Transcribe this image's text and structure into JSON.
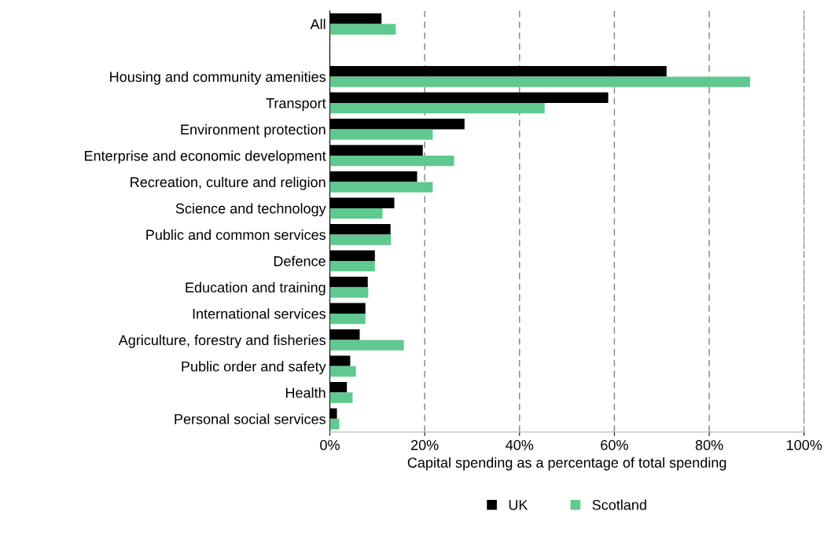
{
  "chart_data": {
    "type": "bar",
    "orientation": "horizontal",
    "xlabel": "Capital spending as a percentage of total spending",
    "categories": [
      "All",
      null,
      "Housing and community amenities",
      "Transport",
      "Environment protection",
      "Enterprise and economic development",
      "Recreation, culture and religion",
      "Science and technology",
      "Public and common services",
      "Defence",
      "Education and training",
      "International services",
      "Agriculture, forestry and fisheries",
      "Public order and safety",
      "Health",
      "Personal social services"
    ],
    "series": [
      {
        "name": "UK",
        "color": "#000000",
        "values": [
          10.9,
          null,
          71.0,
          58.7,
          28.4,
          19.6,
          18.4,
          13.6,
          12.8,
          9.5,
          8.0,
          7.5,
          6.3,
          4.3,
          3.6,
          1.5
        ]
      },
      {
        "name": "Scotland",
        "color": "#5fc98f",
        "values": [
          13.9,
          null,
          88.6,
          45.3,
          21.7,
          26.2,
          21.7,
          11.1,
          12.9,
          9.5,
          8.1,
          7.5,
          15.6,
          5.5,
          4.8,
          2.0
        ]
      }
    ],
    "xlim": [
      0,
      100
    ],
    "xticks": [
      {
        "value": 0,
        "label": "0%"
      },
      {
        "value": 20,
        "label": "20%"
      },
      {
        "value": 40,
        "label": "40%"
      },
      {
        "value": 60,
        "label": "60%"
      },
      {
        "value": 80,
        "label": "80%"
      },
      {
        "value": 100,
        "label": "100%"
      }
    ],
    "grid": "x",
    "legend": "bottom"
  }
}
